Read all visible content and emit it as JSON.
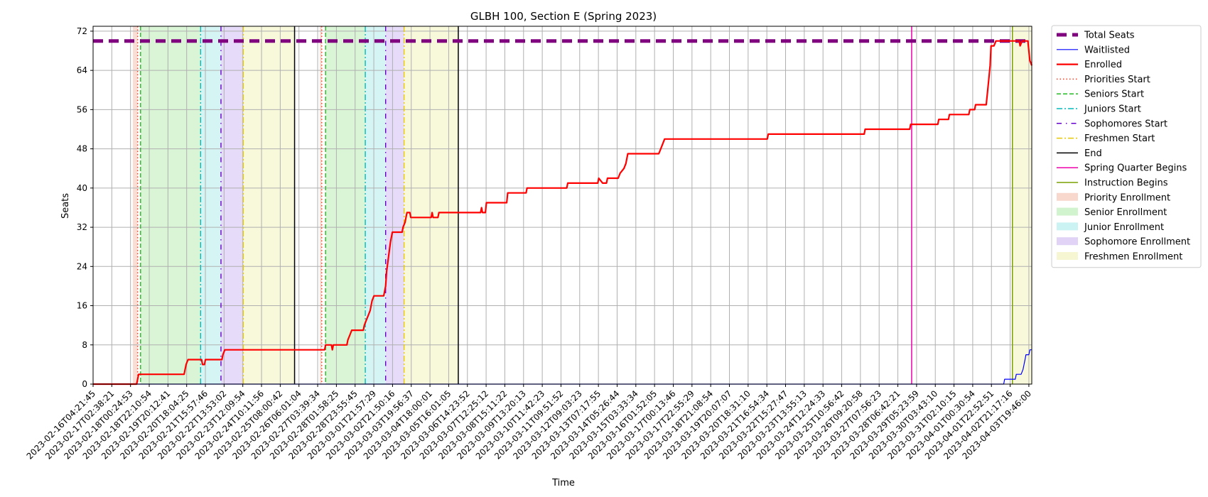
{
  "chart_data": {
    "type": "line",
    "title": "GLBH 100, Section E (Spring 2023)",
    "xlabel": "Time",
    "ylabel": "Seats",
    "ylim": [
      0,
      73
    ],
    "y_ticks": [
      0,
      8,
      16,
      24,
      32,
      40,
      48,
      56,
      64,
      72
    ],
    "grid": true,
    "legend_placement": "outside-upper-right",
    "x_tick_labels": [
      "2023-02-16T04:21:45",
      "2023-02-17T02:38:21",
      "2023-02-18T00:24:53",
      "2023-02-18T22:10:54",
      "2023-02-19T20:12:41",
      "2023-02-20T18:04:25",
      "2023-02-21T15:57:46",
      "2023-02-22T13:53:02",
      "2023-02-23T12:09:54",
      "2023-02-24T10:11:56",
      "2023-02-25T08:00:42",
      "2023-02-26T06:01:04",
      "2023-02-27T03:39:34",
      "2023-02-28T01:58:25",
      "2023-02-28T23:55:45",
      "2023-03-01T21:57:29",
      "2023-03-02T21:50:16",
      "2023-03-03T19:56:37",
      "2023-03-04T18:00:01",
      "2023-03-05T16:01:05",
      "2023-03-06T14:23:52",
      "2023-03-07T12:25:12",
      "2023-03-08T15:11:22",
      "2023-03-09T13:20:13",
      "2023-03-10T11:42:23",
      "2023-03-11T09:51:52",
      "2023-03-12T09:03:23",
      "2023-03-13T07:17:55",
      "2023-03-14T05:26:44",
      "2023-03-15T03:33:34",
      "2023-03-16T01:52:05",
      "2023-03-17T00:13:46",
      "2023-03-17T22:55:29",
      "2023-03-18T21:08:54",
      "2023-03-19T20:07:07",
      "2023-03-20T18:31:10",
      "2023-03-21T16:54:34",
      "2023-03-22T15:27:47",
      "2023-03-23T13:55:13",
      "2023-03-24T12:24:33",
      "2023-03-25T10:56:42",
      "2023-03-26T09:20:58",
      "2023-03-27T07:56:23",
      "2023-03-28T06:42:21",
      "2023-03-29T05:23:59",
      "2023-03-30T03:43:10",
      "2023-03-31T02:10:15",
      "2023-04-01T00:30:54",
      "2023-04-01T22:52:51",
      "2023-04-02T21:17:16",
      "2023-04-03T19:46:00"
    ],
    "series": [
      {
        "name": "Total Seats",
        "color": "#800080",
        "style": "dashed-thick",
        "points": [
          [
            0,
            70
          ],
          [
            48.3,
            70
          ]
        ]
      },
      {
        "name": "Waitlisted",
        "color": "#0000ff",
        "style": "solid-thin",
        "points": [
          [
            0,
            0
          ],
          [
            47.0,
            0
          ],
          [
            47.05,
            1
          ],
          [
            47.6,
            1
          ],
          [
            47.65,
            2
          ],
          [
            47.9,
            2
          ],
          [
            48.0,
            3
          ],
          [
            48.05,
            4
          ],
          [
            48.1,
            5
          ],
          [
            48.15,
            6
          ],
          [
            48.3,
            6
          ],
          [
            48.35,
            7
          ],
          [
            48.45,
            7
          ]
        ]
      },
      {
        "name": "Enrolled",
        "color": "#ff0000",
        "style": "solid-thick",
        "points": [
          [
            0,
            0
          ],
          [
            2.25,
            0
          ],
          [
            2.3,
            1
          ],
          [
            2.35,
            2
          ],
          [
            4.7,
            2
          ],
          [
            4.8,
            4
          ],
          [
            4.9,
            5
          ],
          [
            5.6,
            5
          ],
          [
            5.65,
            4
          ],
          [
            5.75,
            4
          ],
          [
            5.8,
            5
          ],
          [
            6.65,
            5
          ],
          [
            6.7,
            6
          ],
          [
            6.8,
            7
          ],
          [
            11.95,
            7
          ],
          [
            12.0,
            8
          ],
          [
            12.3,
            8
          ],
          [
            12.35,
            7
          ],
          [
            12.4,
            8
          ],
          [
            13.1,
            8
          ],
          [
            13.15,
            9
          ],
          [
            13.25,
            10
          ],
          [
            13.35,
            11
          ],
          [
            13.95,
            11
          ],
          [
            14.0,
            12
          ],
          [
            14.1,
            13
          ],
          [
            14.2,
            14
          ],
          [
            14.3,
            15
          ],
          [
            14.4,
            17
          ],
          [
            14.5,
            18
          ],
          [
            15.0,
            18
          ],
          [
            15.1,
            20
          ],
          [
            15.15,
            23
          ],
          [
            15.25,
            26
          ],
          [
            15.35,
            29
          ],
          [
            15.45,
            31
          ],
          [
            15.95,
            31
          ],
          [
            16.0,
            32
          ],
          [
            16.1,
            33
          ],
          [
            16.2,
            35
          ],
          [
            16.35,
            35
          ],
          [
            16.4,
            34
          ],
          [
            17.45,
            34
          ],
          [
            17.5,
            35
          ],
          [
            17.55,
            34
          ],
          [
            17.8,
            34
          ],
          [
            17.85,
            35
          ],
          [
            20.0,
            35
          ],
          [
            20.05,
            36
          ],
          [
            20.1,
            35
          ],
          [
            20.25,
            35
          ],
          [
            20.3,
            37
          ],
          [
            21.35,
            37
          ],
          [
            21.4,
            39
          ],
          [
            22.35,
            39
          ],
          [
            22.4,
            40
          ],
          [
            24.45,
            40
          ],
          [
            24.5,
            41
          ],
          [
            26.05,
            41
          ],
          [
            26.1,
            42
          ],
          [
            26.3,
            41
          ],
          [
            26.5,
            41
          ],
          [
            26.55,
            42
          ],
          [
            27.1,
            42
          ],
          [
            27.2,
            43
          ],
          [
            27.4,
            44
          ],
          [
            27.5,
            45
          ],
          [
            27.6,
            47
          ],
          [
            29.2,
            47
          ],
          [
            29.3,
            48
          ],
          [
            29.5,
            50
          ],
          [
            34.8,
            50
          ],
          [
            34.85,
            51
          ],
          [
            39.8,
            51
          ],
          [
            39.85,
            52
          ],
          [
            42.15,
            52
          ],
          [
            42.2,
            53
          ],
          [
            43.6,
            53
          ],
          [
            43.65,
            54
          ],
          [
            44.15,
            54
          ],
          [
            44.2,
            55
          ],
          [
            45.2,
            55
          ],
          [
            45.25,
            56
          ],
          [
            45.5,
            56
          ],
          [
            45.55,
            57
          ],
          [
            46.1,
            57
          ],
          [
            46.2,
            61
          ],
          [
            46.3,
            65
          ],
          [
            46.35,
            69
          ],
          [
            46.5,
            69
          ],
          [
            46.6,
            70
          ],
          [
            47.8,
            70
          ],
          [
            47.85,
            69
          ],
          [
            47.95,
            70
          ],
          [
            48.25,
            70
          ],
          [
            48.35,
            66
          ],
          [
            48.45,
            65
          ]
        ]
      }
    ],
    "markers": [
      {
        "name": "Priorities Start",
        "color": "#ff3b1f",
        "style": "dotted",
        "x": 2.3
      },
      {
        "name": "Seniors Start",
        "color": "#22bb22",
        "style": "dashed",
        "x": 2.45
      },
      {
        "name": "Juniors Start",
        "color": "#00bbbb",
        "style": "dashdot",
        "x": 5.55
      },
      {
        "name": "Sophomores Start",
        "color": "#6600cc",
        "style": "loosedot",
        "x": 6.6
      },
      {
        "name": "Freshmen Start",
        "color": "#e8c800",
        "style": "dashdot",
        "x": 7.75
      },
      {
        "name": "End",
        "color": "#000000",
        "style": "solid",
        "x": 10.4
      },
      {
        "name": "Priorities Start",
        "color": "#ff3b1f",
        "style": "dotted",
        "x": 11.8
      },
      {
        "name": "Seniors Start",
        "color": "#22bb22",
        "style": "dashed",
        "x": 12.0
      },
      {
        "name": "Juniors Start",
        "color": "#00bbbb",
        "style": "dashdot",
        "x": 14.05
      },
      {
        "name": "Sophomores Start",
        "color": "#6600cc",
        "style": "loosedot",
        "x": 15.1
      },
      {
        "name": "Freshmen Start",
        "color": "#e8c800",
        "style": "dashdot",
        "x": 16.05
      },
      {
        "name": "End",
        "color": "#000000",
        "style": "solid",
        "x": 18.85
      },
      {
        "name": "Spring Quarter Begins",
        "color": "#ee00aa",
        "style": "solid",
        "x": 42.25
      },
      {
        "name": "Instruction Begins",
        "color": "#7aa000",
        "style": "solid",
        "x": 47.45
      }
    ],
    "spans": [
      {
        "name": "Priority Enrollment",
        "color": "#f6cdbf",
        "from": 2.05,
        "to": 2.3
      },
      {
        "name": "Senior Enrollment",
        "color": "#c6f0c0",
        "from": 2.45,
        "to": 5.55
      },
      {
        "name": "Junior Enrollment",
        "color": "#bff0f0",
        "from": 5.55,
        "to": 6.6
      },
      {
        "name": "Sophomore Enrollment",
        "color": "#d8c8f4",
        "from": 6.6,
        "to": 7.75
      },
      {
        "name": "Freshmen Enrollment",
        "color": "#f4f4c8",
        "from": 7.75,
        "to": 10.4
      },
      {
        "name": "Priority Enrollment",
        "color": "#f6cdbf",
        "from": 11.7,
        "to": 11.8
      },
      {
        "name": "Senior Enrollment",
        "color": "#c6f0c0",
        "from": 12.0,
        "to": 14.05
      },
      {
        "name": "Junior Enrollment",
        "color": "#bff0f0",
        "from": 14.05,
        "to": 15.1
      },
      {
        "name": "Sophomore Enrollment",
        "color": "#d8c8f4",
        "from": 15.1,
        "to": 16.05
      },
      {
        "name": "Freshmen Enrollment",
        "color": "#f4f4c8",
        "from": 16.05,
        "to": 18.85
      },
      {
        "name": "Freshmen Enrollment",
        "color": "#f4f4c8",
        "from": 47.45,
        "to": 48.45
      }
    ],
    "legend": [
      {
        "label": "Total Seats",
        "color": "#800080",
        "kind": "line-dashed-thick"
      },
      {
        "label": "Waitlisted",
        "color": "#0000ff",
        "kind": "line-thin"
      },
      {
        "label": "Enrolled",
        "color": "#ff0000",
        "kind": "line-thick"
      },
      {
        "label": "Priorities Start",
        "color": "#ff3b1f",
        "kind": "line-dotted"
      },
      {
        "label": "Seniors Start",
        "color": "#22bb22",
        "kind": "line-dashed"
      },
      {
        "label": "Juniors Start",
        "color": "#00bbbb",
        "kind": "line-dashdot"
      },
      {
        "label": "Sophomores Start",
        "color": "#6600cc",
        "kind": "line-loosedot"
      },
      {
        "label": "Freshmen Start",
        "color": "#e8c800",
        "kind": "line-dashdot"
      },
      {
        "label": "End",
        "color": "#000000",
        "kind": "line-solid"
      },
      {
        "label": "Spring Quarter Begins",
        "color": "#ee00aa",
        "kind": "line-solid"
      },
      {
        "label": "Instruction Begins",
        "color": "#7aa000",
        "kind": "line-solid"
      },
      {
        "label": "Priority Enrollment",
        "color": "#f6cdbf",
        "kind": "patch"
      },
      {
        "label": "Senior Enrollment",
        "color": "#c6f0c0",
        "kind": "patch"
      },
      {
        "label": "Junior Enrollment",
        "color": "#bff0f0",
        "kind": "patch"
      },
      {
        "label": "Sophomore Enrollment",
        "color": "#d8c8f4",
        "kind": "patch"
      },
      {
        "label": "Freshmen Enrollment",
        "color": "#f4f4c8",
        "kind": "patch"
      }
    ]
  }
}
